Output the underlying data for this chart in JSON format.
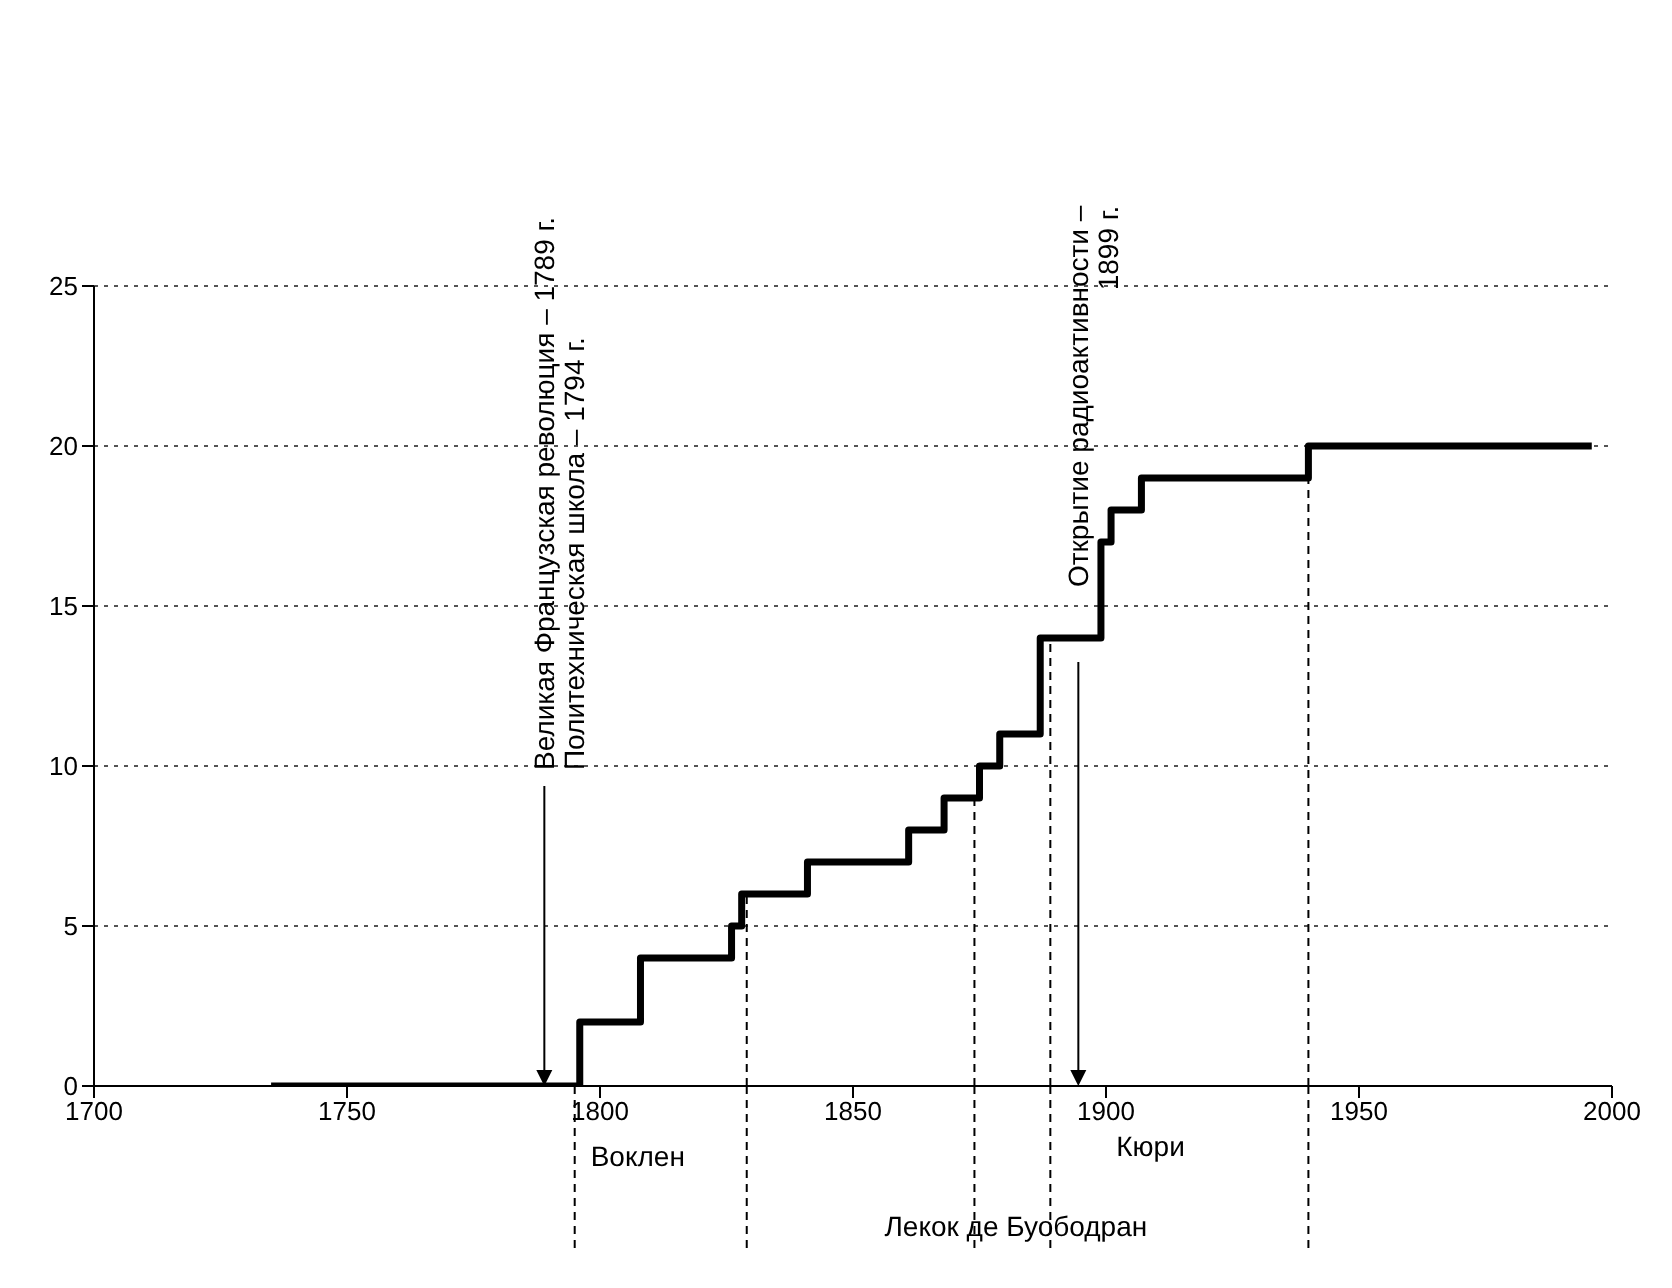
{
  "chart_data": {
    "type": "step",
    "x": [
      1735,
      1796,
      1808,
      1826,
      1828,
      1841,
      1861,
      1868,
      1875,
      1879,
      1887,
      1899,
      1901,
      1907,
      1940,
      1996
    ],
    "series": [
      {
        "color": "#000000",
        "values": [
          0,
          2,
          4,
          5,
          6,
          7,
          8,
          9,
          10,
          11,
          14,
          17,
          18,
          19,
          20,
          20
        ]
      }
    ],
    "xlim": [
      1700,
      2000
    ],
    "xticks": [
      1700,
      1750,
      1800,
      1850,
      1900,
      1950,
      2000
    ],
    "ylim": [
      0,
      25
    ],
    "yticks": [
      0,
      5,
      10,
      15,
      20,
      25
    ],
    "grid": "y",
    "marker": "none",
    "line_style": "solid",
    "ref_lines": [
      {
        "axis": "x",
        "value": 1795,
        "label": "Воклен",
        "line_style": "dashed"
      },
      {
        "axis": "x",
        "value": 1829,
        "label": null,
        "line_style": "dashed"
      },
      {
        "axis": "x",
        "value": 1874,
        "label": "Лекок де Буободран",
        "line_style": "dashed"
      },
      {
        "axis": "x",
        "value": 1889,
        "label": "Кюри",
        "line_style": "dashed"
      },
      {
        "axis": "x",
        "value": 1940,
        "label": null,
        "line_style": "dashed"
      }
    ],
    "annotations": [
      {
        "text": "Великая Французская революция – 1789 г.\nПолитехническая школа  – 1794 г.",
        "x": 1789,
        "y": 0
      },
      "Открытие радиоактивности –\n1899 г."
    ]
  }
}
